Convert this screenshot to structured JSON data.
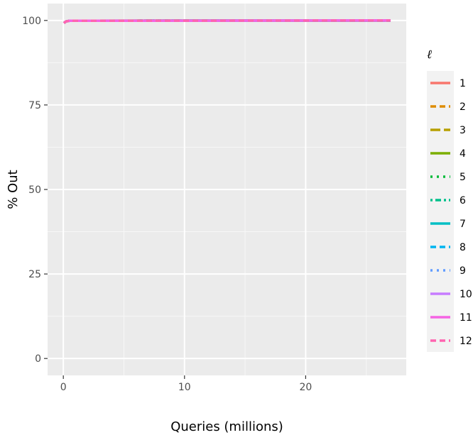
{
  "chart_data": {
    "type": "line",
    "xlabel": "Queries (millions)",
    "ylabel": "% Out",
    "xlim": [
      -1.3,
      28.3
    ],
    "ylim": [
      -5,
      105
    ],
    "x_ticks": [
      0,
      10,
      20
    ],
    "x_tick_labels": [
      "0",
      "10",
      "20"
    ],
    "y_ticks": [
      0,
      25,
      50,
      75,
      100
    ],
    "y_tick_labels": [
      "0",
      "25",
      "50",
      "75",
      "100"
    ],
    "grid": true,
    "legend_title": "ℓ",
    "legend_position": "right",
    "series": [
      {
        "name": "1",
        "color": "#F8766D",
        "dash": "solid",
        "x": [
          0.05,
          0.2,
          0.5,
          27
        ],
        "y": [
          99.2,
          99.7,
          99.9,
          100
        ]
      },
      {
        "name": "2",
        "color": "#DE8C00",
        "dash": "dashed",
        "x": [
          0.05,
          0.2,
          0.5,
          27
        ],
        "y": [
          99.2,
          99.7,
          99.9,
          100
        ]
      },
      {
        "name": "3",
        "color": "#B79F00",
        "dash": "longdash",
        "x": [
          0.05,
          0.2,
          0.5,
          27
        ],
        "y": [
          99.2,
          99.7,
          99.9,
          100
        ]
      },
      {
        "name": "4",
        "color": "#7CAE00",
        "dash": "solid",
        "x": [
          0.05,
          0.2,
          0.5,
          27
        ],
        "y": [
          99.2,
          99.7,
          99.9,
          100
        ]
      },
      {
        "name": "5",
        "color": "#00BA38",
        "dash": "dotted",
        "x": [
          0.05,
          0.2,
          0.5,
          27
        ],
        "y": [
          99.2,
          99.7,
          99.9,
          100
        ]
      },
      {
        "name": "6",
        "color": "#00C08B",
        "dash": "dotdash",
        "x": [
          0.05,
          0.2,
          0.5,
          27
        ],
        "y": [
          99.2,
          99.7,
          99.9,
          100
        ]
      },
      {
        "name": "7",
        "color": "#00BFC4",
        "dash": "solid",
        "x": [
          0.05,
          0.2,
          0.5,
          27
        ],
        "y": [
          99.2,
          99.7,
          99.9,
          100
        ]
      },
      {
        "name": "8",
        "color": "#00B4F0",
        "dash": "dashed",
        "x": [
          0.05,
          0.2,
          0.5,
          27
        ],
        "y": [
          99.2,
          99.7,
          99.9,
          100
        ]
      },
      {
        "name": "9",
        "color": "#619CFF",
        "dash": "dotted",
        "x": [
          0.05,
          0.2,
          0.5,
          27
        ],
        "y": [
          99.2,
          99.7,
          99.9,
          100
        ]
      },
      {
        "name": "10",
        "color": "#C77CFF",
        "dash": "solid",
        "x": [
          0.05,
          0.2,
          0.5,
          27
        ],
        "y": [
          99.2,
          99.7,
          99.9,
          100
        ]
      },
      {
        "name": "11",
        "color": "#F564E3",
        "dash": "solid",
        "x": [
          0.05,
          0.2,
          0.5,
          27
        ],
        "y": [
          99.2,
          99.7,
          99.9,
          100
        ]
      },
      {
        "name": "12",
        "color": "#FF64B0",
        "dash": "dashed",
        "x": [
          0.05,
          0.2,
          0.5,
          27
        ],
        "y": [
          99.2,
          99.7,
          99.9,
          100
        ]
      }
    ]
  }
}
